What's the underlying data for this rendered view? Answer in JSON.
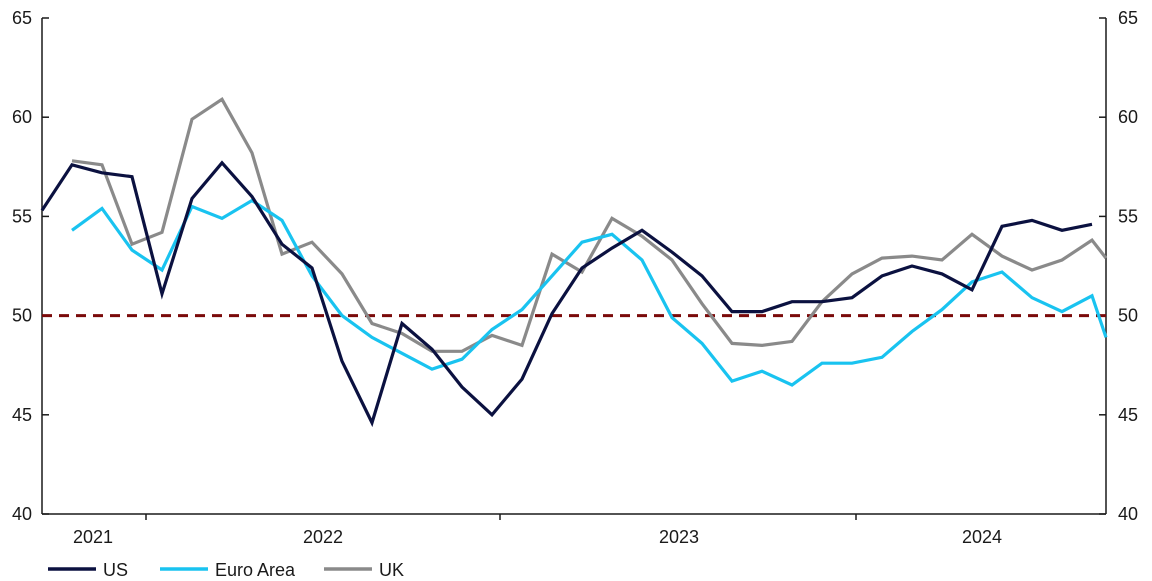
{
  "chart_data": {
    "type": "line",
    "title": "",
    "xlabel": "",
    "ylabel": "",
    "ylim": [
      40,
      65
    ],
    "y_ticks": [
      40,
      45,
      50,
      55,
      60,
      65
    ],
    "x_year_labels": [
      "2021",
      "2022",
      "2023",
      "2024"
    ],
    "reference_line": {
      "value": 50,
      "style": "dashed",
      "color": "#7a0a0a"
    },
    "legend_position": "bottom-left",
    "grid": false,
    "series": [
      {
        "name": "US",
        "color": "#0b1140",
        "start_month": "2021-02",
        "values": [
          55.3,
          57.6,
          57.2,
          57.0,
          51.1,
          55.9,
          57.7,
          56.0,
          53.6,
          52.4,
          47.7,
          44.6,
          49.6,
          48.3,
          46.4,
          45.0,
          46.8,
          50.1,
          52.4,
          53.4,
          54.3,
          53.2,
          52.0,
          50.2,
          50.2,
          50.7,
          50.7,
          50.9,
          52.0,
          52.5,
          52.1,
          51.3,
          54.5,
          54.8,
          54.3,
          54.6
        ]
      },
      {
        "name": "Euro Area",
        "color": "#19c3f0",
        "start_month": "2021-03",
        "values": [
          54.3,
          55.4,
          53.3,
          52.3,
          55.5,
          54.9,
          55.8,
          54.8,
          52.0,
          50.0,
          48.9,
          48.1,
          47.3,
          47.8,
          49.3,
          50.3,
          52.0,
          53.7,
          54.1,
          52.8,
          49.9,
          48.6,
          46.7,
          47.2,
          46.5,
          47.6,
          47.6,
          47.9,
          49.2,
          50.3,
          51.7,
          52.2,
          50.9,
          50.2,
          51.0,
          48.9
        ]
      },
      {
        "name": "UK",
        "color": "#8a8a8a",
        "start_month": "2021-03",
        "values": [
          57.8,
          57.6,
          53.6,
          54.2,
          59.9,
          60.9,
          58.2,
          53.1,
          53.7,
          52.1,
          49.6,
          49.1,
          48.2,
          48.2,
          49.0,
          48.5,
          53.1,
          52.2,
          54.9,
          54.0,
          52.8,
          50.6,
          48.6,
          48.5,
          48.7,
          50.7,
          52.1,
          52.9,
          53.0,
          52.8,
          54.1,
          53.0,
          52.3,
          52.8,
          53.8,
          52.9
        ]
      }
    ]
  }
}
